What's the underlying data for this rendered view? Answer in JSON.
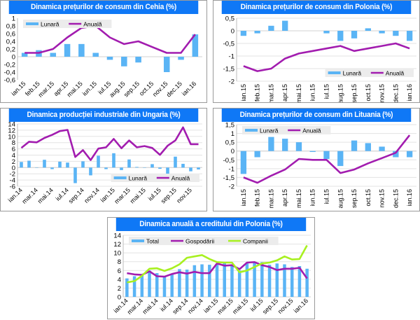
{
  "colors": {
    "title_bg": "#0f78f6",
    "bar": "#5ab4f5",
    "line_annual": "#a21caf",
    "line_companies": "#a8f020",
    "grid": "#e3e3e3",
    "legend_bg": "#ececec"
  },
  "chart_data": [
    {
      "id": "cehia",
      "type": "bar+line",
      "title": "Dinamica prețurilor de consum din Cehia (%)",
      "categories": [
        "ian.15",
        "feb.15",
        "mar.15",
        "apr.15",
        "mai.15",
        "iun.15",
        "iul.15",
        "aug.15",
        "sep.15",
        "oct.15",
        "nov.15",
        "dec.15",
        "ian.16"
      ],
      "series": [
        {
          "name": "Lunară",
          "kind": "bar",
          "values": [
            0.1,
            0.17,
            0.1,
            0.33,
            0.33,
            0.1,
            -0.08,
            -0.25,
            -0.15,
            0,
            -0.4,
            -0.08,
            0.58
          ]
        },
        {
          "name": "Anuală",
          "kind": "line",
          "values": [
            0.1,
            0.1,
            0.2,
            0.5,
            0.75,
            0.8,
            0.5,
            0.33,
            0.4,
            0.25,
            0.1,
            0.1,
            0.58
          ]
        }
      ],
      "ylim": [
        -0.6,
        1
      ],
      "yticks": [
        "-0,6",
        "-0,4",
        "-0,2",
        "0",
        "0,2",
        "0,4",
        "0,6",
        "0,8",
        "1"
      ],
      "ytick_values": [
        -0.6,
        -0.4,
        -0.2,
        0,
        0.2,
        0.4,
        0.6,
        0.8,
        1
      ],
      "label_every": 1,
      "label_rotation": "diagonal",
      "legend": "top-left",
      "grid": false
    },
    {
      "id": "polonia",
      "type": "bar+line",
      "title": "Dinamica prețurilor de consum din Polonia (%)",
      "categories": [
        "ian.15",
        "feb.15",
        "mar.15",
        "apr.15",
        "mai.15",
        "iun.15",
        "iul.15",
        "aug.15",
        "sep.15",
        "oct.15",
        "nov.15",
        "dec.15",
        "ian.16"
      ],
      "series": [
        {
          "name": "Lunară",
          "kind": "bar",
          "values": [
            -0.2,
            -0.1,
            0.2,
            0.4,
            0,
            0,
            -0.1,
            -0.4,
            -0.3,
            0.1,
            -0.1,
            -0.2,
            -0.4
          ]
        },
        {
          "name": "Anuală",
          "kind": "line",
          "values": [
            -1.4,
            -1.6,
            -1.5,
            -1.1,
            -0.9,
            -0.8,
            -0.7,
            -0.6,
            -0.8,
            -0.7,
            -0.6,
            -0.5,
            -0.7
          ]
        }
      ],
      "ylim": [
        -2,
        0.5
      ],
      "yticks": [
        "-2",
        "-1,5",
        "-1",
        "-0,5",
        "0",
        "0,5"
      ],
      "ytick_values": [
        -2,
        -1.5,
        -1,
        -0.5,
        0,
        0.5
      ],
      "label_every": 1,
      "label_rotation": "vertical",
      "legend": "bottom-right",
      "grid": true
    },
    {
      "id": "ungaria",
      "type": "bar+line",
      "title": "Dinamica producției industriale din Ungaria (%)",
      "categories": [
        "ian.14",
        "feb.14",
        "mar.14",
        "apr.14",
        "mai.14",
        "iun.14",
        "iul.14",
        "aug.14",
        "sep.14",
        "oct.14",
        "nov.14",
        "dec.14",
        "ian.15",
        "feb.15",
        "mar.15",
        "apr.15",
        "mai.15",
        "iun.15",
        "iul.15",
        "aug.15",
        "sep.15",
        "oct.15",
        "nov.15",
        "dec.15"
      ],
      "series": [
        {
          "name": "Lunară",
          "kind": "bar",
          "values": [
            1.8,
            2.2,
            -0.1,
            2.5,
            -0.5,
            1.9,
            1.6,
            -5.0,
            2.0,
            -2.5,
            3.8,
            -0.5,
            4.6,
            -0.8,
            2.6,
            0.2,
            -0.1,
            1.1,
            -0.4,
            -2.2,
            3.5,
            1.2,
            -1.2,
            -0.6
          ]
        },
        {
          "name": "Anuală",
          "kind": "line",
          "values": [
            6.3,
            8.3,
            8.1,
            9.5,
            10.5,
            11.7,
            12.1,
            3.4,
            5.6,
            2.4,
            6.1,
            6.5,
            9.2,
            6.2,
            8.7,
            6.5,
            6.9,
            6.3,
            4.1,
            7.0,
            8.7,
            12.9,
            7.5,
            7.5
          ]
        }
      ],
      "ylim": [
        -6,
        14
      ],
      "yticks": [
        "-6",
        "-4",
        "-2",
        "0",
        "2",
        "4",
        "6",
        "8",
        "10",
        "12",
        "14"
      ],
      "ytick_values": [
        -6,
        -4,
        -2,
        0,
        2,
        4,
        6,
        8,
        10,
        12,
        14
      ],
      "label_every": 2,
      "label_rotation": "diagonal",
      "legend": "bottom-right",
      "grid": true
    },
    {
      "id": "lituania",
      "type": "bar+line",
      "title": "Dinamica prețurilor de consum din Lituania (%)",
      "categories": [
        "ian.15",
        "feb.15",
        "mar.15",
        "apr.15",
        "mai.15",
        "iun.15",
        "iul.15",
        "aug.15",
        "sep.15",
        "oct.15",
        "nov.15",
        "dec.15",
        "ian.16"
      ],
      "series": [
        {
          "name": "Lunară",
          "kind": "bar",
          "values": [
            -1.3,
            -0.35,
            0.8,
            0.7,
            0.5,
            -0.05,
            -0.45,
            -0.85,
            0.6,
            0.45,
            0.25,
            -0.35,
            -0.35
          ]
        },
        {
          "name": "Anuală",
          "kind": "line",
          "values": [
            -1.5,
            -1.8,
            -1.4,
            -1.05,
            -0.45,
            -0.5,
            -0.5,
            -1.25,
            -1.05,
            -0.7,
            -0.4,
            -0.1,
            0.9
          ]
        }
      ],
      "ylim": [
        -2,
        1.5
      ],
      "yticks": [
        "-2",
        "-1,5",
        "-1",
        "-0,5",
        "0",
        "0,5",
        "1",
        "1,5"
      ],
      "ytick_values": [
        -2,
        -1.5,
        -1,
        -0.5,
        0,
        0.5,
        1,
        1.5
      ],
      "label_every": 1,
      "label_rotation": "vertical",
      "legend": "top-left",
      "grid": true
    },
    {
      "id": "credit",
      "type": "bar+line",
      "title": "Dinamica anuală a creditului din Polonia (%)",
      "categories": [
        "ian.14",
        "feb.14",
        "mar.14",
        "apr.14",
        "mai.14",
        "iun.14",
        "iul.14",
        "aug.14",
        "sep.14",
        "oct.14",
        "nov.14",
        "dec.14",
        "ian.15",
        "feb.15",
        "mar.15",
        "apr.15",
        "mai.15",
        "iun.15",
        "iul.15",
        "aug.15",
        "sep.15",
        "oct.15",
        "nov.15",
        "dec.15",
        "ian.16"
      ],
      "series": [
        {
          "name": "Total",
          "kind": "bar",
          "values": [
            4.2,
            4.7,
            5.0,
            6.0,
            5.4,
            4.7,
            5.1,
            6.3,
            6.2,
            7.2,
            7.4,
            7.3,
            7.5,
            7.7,
            7.3,
            6.0,
            7.7,
            7.8,
            7.9,
            7.3,
            7.6,
            7.4,
            6.8,
            7.0,
            6.4
          ]
        },
        {
          "name": "Gospodării",
          "kind": "line",
          "values": [
            5.4,
            5.1,
            5.0,
            5.8,
            4.7,
            4.6,
            5.2,
            5.6,
            5.3,
            5.7,
            5.4,
            5.4,
            7.6,
            7.1,
            7.2,
            6.3,
            7.8,
            7.9,
            7.2,
            6.8,
            6.1,
            6.4,
            6.4,
            6.6,
            4.2
          ]
        },
        {
          "name": "Companii",
          "kind": "line",
          "values": [
            3.3,
            3.6,
            4.8,
            6.4,
            6.5,
            5.9,
            6.5,
            7.4,
            8.9,
            9.2,
            9.5,
            8.6,
            7.9,
            7.8,
            7.8,
            5.6,
            6.0,
            6.8,
            7.6,
            7.8,
            8.3,
            9.2,
            8.5,
            8.6,
            11.7
          ]
        }
      ],
      "ylim": [
        0,
        14
      ],
      "yticks": [
        "0",
        "2",
        "4",
        "6",
        "8",
        "10",
        "12",
        "14"
      ],
      "ytick_values": [
        0,
        2,
        4,
        6,
        8,
        10,
        12,
        14
      ],
      "label_every": 2,
      "label_rotation": "diagonal",
      "legend": "top-left",
      "grid": true
    }
  ]
}
